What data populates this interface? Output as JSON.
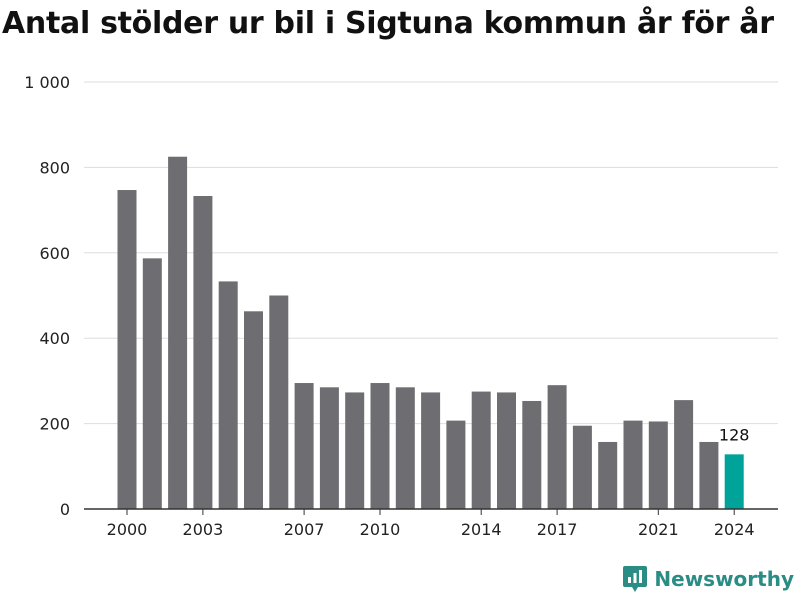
{
  "title": "Antal stölder ur bil i Sigtuna kommun år för år",
  "brand": {
    "name": "Newsworthy",
    "icon": "newsworthy-logo-icon",
    "color": "#2a8c85"
  },
  "chart_data": {
    "type": "bar",
    "title": "Antal stölder ur bil i Sigtuna kommun år för år",
    "xlabel": "",
    "ylabel": "",
    "ylim": [
      0,
      1000
    ],
    "yticks": [
      0,
      200,
      400,
      600,
      800,
      1000
    ],
    "ytick_labels": [
      "0",
      "200",
      "400",
      "600",
      "800",
      "1 000"
    ],
    "xtick_labels": [
      "2000",
      "2003",
      "2007",
      "2010",
      "2014",
      "2017",
      "2021",
      "2024"
    ],
    "categories": [
      "2000",
      "2001",
      "2002",
      "2003",
      "2004",
      "2005",
      "2006",
      "2007",
      "2008",
      "2009",
      "2010",
      "2011",
      "2012",
      "2013",
      "2014",
      "2015",
      "2016",
      "2017",
      "2018",
      "2019",
      "2020",
      "2021",
      "2022",
      "2023",
      "2024"
    ],
    "values": [
      747,
      587,
      825,
      733,
      533,
      463,
      500,
      295,
      285,
      273,
      295,
      285,
      273,
      207,
      275,
      273,
      253,
      290,
      195,
      157,
      207,
      205,
      255,
      157,
      128
    ],
    "highlight": {
      "category": "2024",
      "label": "128"
    },
    "grid": true,
    "colors": {
      "bar": "#6e6d72",
      "highlight": "#00a39a",
      "grid": "#dddddd",
      "axis": "#333333"
    }
  }
}
